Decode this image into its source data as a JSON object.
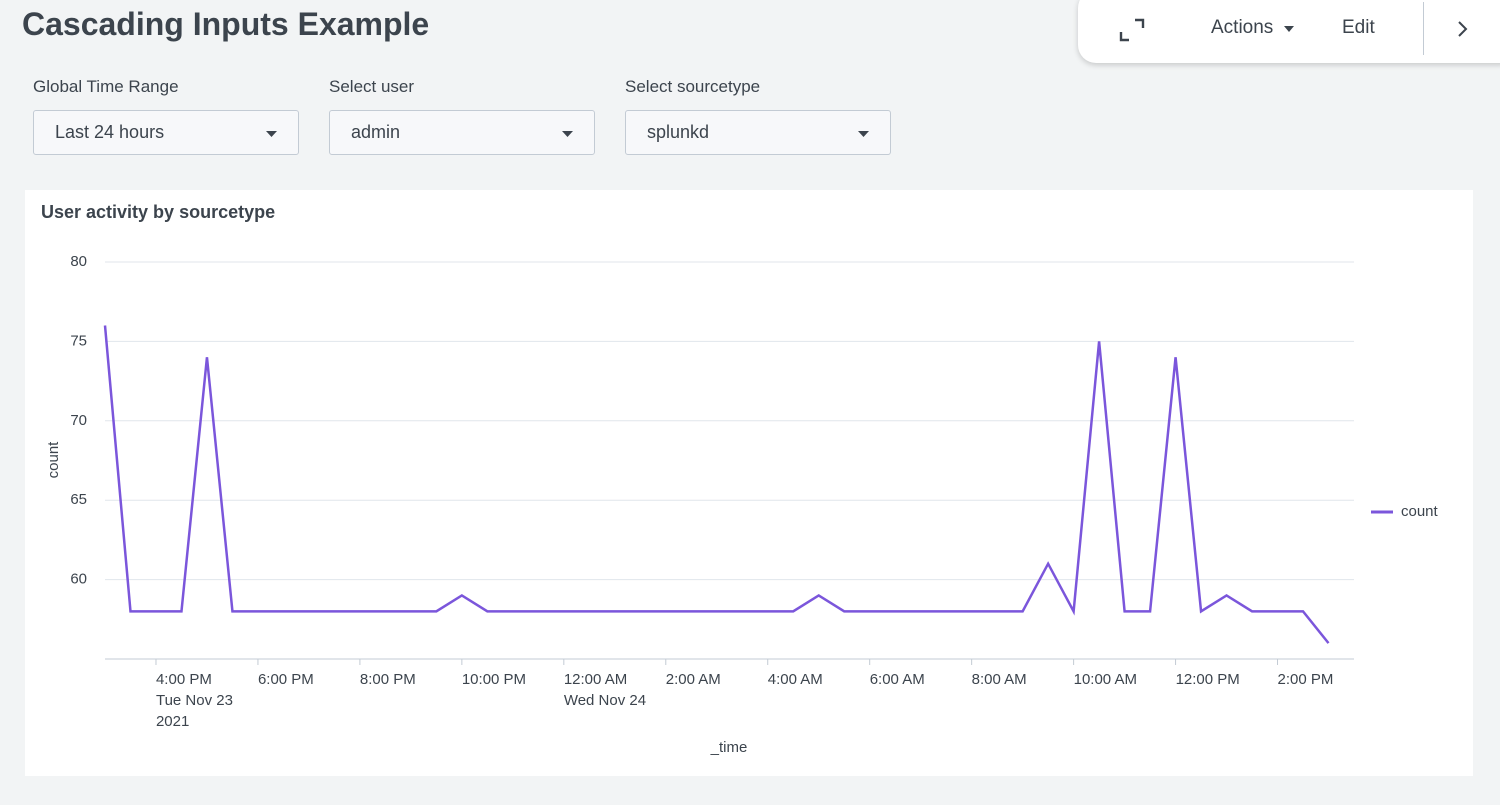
{
  "header": {
    "title": "Cascading Inputs Example",
    "actions": "Actions",
    "edit": "Edit"
  },
  "inputs": [
    {
      "label": "Global Time Range",
      "value": "Last 24 hours"
    },
    {
      "label": "Select user",
      "value": "admin"
    },
    {
      "label": "Select sourcetype",
      "value": "splunkd"
    }
  ],
  "chart_data": {
    "type": "line",
    "title": "User activity by sourcetype",
    "x_label": "_time",
    "y_label": "count",
    "x": [
      "2021-11-23T15:00",
      "2021-11-23T15:30",
      "2021-11-23T16:00",
      "2021-11-23T16:30",
      "2021-11-23T17:00",
      "2021-11-23T17:30",
      "2021-11-23T18:00",
      "2021-11-23T18:30",
      "2021-11-23T19:00",
      "2021-11-23T19:30",
      "2021-11-23T20:00",
      "2021-11-23T20:30",
      "2021-11-23T21:00",
      "2021-11-23T21:30",
      "2021-11-23T22:00",
      "2021-11-23T22:30",
      "2021-11-23T23:00",
      "2021-11-23T23:30",
      "2021-11-24T00:00",
      "2021-11-24T00:30",
      "2021-11-24T01:00",
      "2021-11-24T01:30",
      "2021-11-24T02:00",
      "2021-11-24T02:30",
      "2021-11-24T03:00",
      "2021-11-24T03:30",
      "2021-11-24T04:00",
      "2021-11-24T04:30",
      "2021-11-24T05:00",
      "2021-11-24T05:30",
      "2021-11-24T06:00",
      "2021-11-24T06:30",
      "2021-11-24T07:00",
      "2021-11-24T07:30",
      "2021-11-24T08:00",
      "2021-11-24T08:30",
      "2021-11-24T09:00",
      "2021-11-24T09:30",
      "2021-11-24T10:00",
      "2021-11-24T10:30",
      "2021-11-24T11:00",
      "2021-11-24T11:30",
      "2021-11-24T12:00",
      "2021-11-24T12:30",
      "2021-11-24T13:00",
      "2021-11-24T13:30",
      "2021-11-24T14:00",
      "2021-11-24T14:30",
      "2021-11-24T15:00"
    ],
    "series": [
      {
        "name": "count",
        "color": "#7b56db",
        "values": [
          76,
          58,
          58,
          58,
          74,
          58,
          58,
          58,
          58,
          58,
          58,
          58,
          58,
          58,
          59,
          58,
          58,
          58,
          58,
          58,
          58,
          58,
          58,
          58,
          58,
          58,
          58,
          58,
          59,
          58,
          58,
          58,
          58,
          58,
          58,
          58,
          58,
          61,
          58,
          75,
          58,
          58,
          74,
          58,
          59,
          58,
          58,
          58,
          56
        ]
      }
    ],
    "xlim": [
      "2021-11-23T15:00",
      "2021-11-24T15:30"
    ],
    "xticks": [
      {
        "value": "2021-11-23T16:00",
        "label": [
          "4:00 PM",
          "Tue Nov 23",
          "2021"
        ]
      },
      {
        "value": "2021-11-23T18:00",
        "label": [
          "6:00 PM"
        ]
      },
      {
        "value": "2021-11-23T20:00",
        "label": [
          "8:00 PM"
        ]
      },
      {
        "value": "2021-11-23T22:00",
        "label": [
          "10:00 PM"
        ]
      },
      {
        "value": "2021-11-24T00:00",
        "label": [
          "12:00 AM",
          "Wed Nov 24"
        ]
      },
      {
        "value": "2021-11-24T02:00",
        "label": [
          "2:00 AM"
        ]
      },
      {
        "value": "2021-11-24T04:00",
        "label": [
          "4:00 AM"
        ]
      },
      {
        "value": "2021-11-24T06:00",
        "label": [
          "6:00 AM"
        ]
      },
      {
        "value": "2021-11-24T08:00",
        "label": [
          "8:00 AM"
        ]
      },
      {
        "value": "2021-11-24T10:00",
        "label": [
          "10:00 AM"
        ]
      },
      {
        "value": "2021-11-24T12:00",
        "label": [
          "12:00 PM"
        ]
      },
      {
        "value": "2021-11-24T14:00",
        "label": [
          "2:00 PM"
        ]
      }
    ],
    "ylim": [
      55,
      80
    ],
    "yticks": [
      60,
      65,
      70,
      75,
      80
    ],
    "grid": true,
    "legend": "right"
  }
}
